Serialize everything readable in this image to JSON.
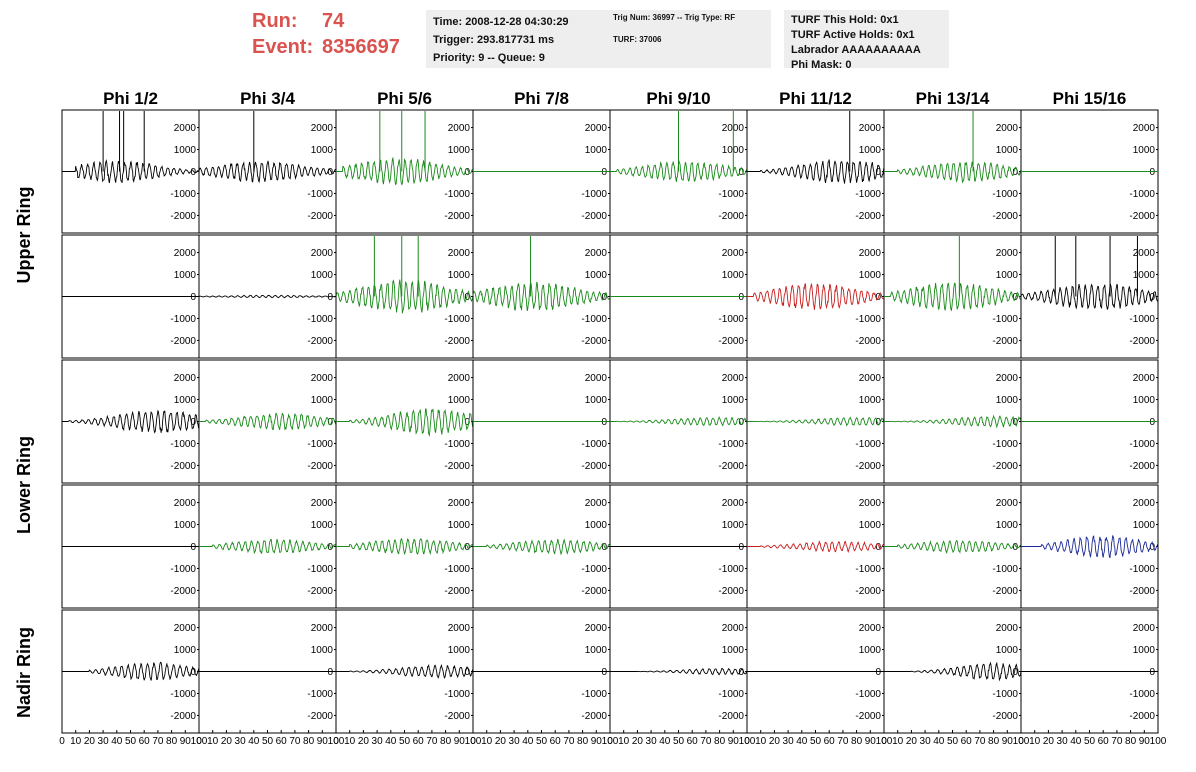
{
  "header": {
    "run_label": "Run:",
    "run_value": "74",
    "event_label": "Event:",
    "event_value": "8356697",
    "time": "Time: 2008-12-28 04:30:29",
    "trigger": "Trigger: 293.817731 ms",
    "priority": "Priority: 9 -- Queue: 9",
    "trig_num": "Trig Num: 36997 -- Trig Type: RF",
    "turf": "TURF: 37006",
    "turf_this_hold": "TURF This Hold: 0x1",
    "turf_active_holds": "TURF Active Holds: 0x1",
    "labrador": "Labrador AAAAAAAAAA",
    "phi_mask": "Phi Mask: 0",
    "accent_color": "#d9534f"
  },
  "chart_data": {
    "type": "line",
    "columns": [
      "Phi 1/2",
      "Phi 3/4",
      "Phi 5/6",
      "Phi 7/8",
      "Phi 9/10",
      "Phi 11/12",
      "Phi 13/14",
      "Phi 15/16"
    ],
    "rows": [
      "Upper Ring",
      "Upper Ring",
      "Lower Ring",
      "Lower Ring",
      "Nadir Ring"
    ],
    "row_groups": [
      {
        "label": "Upper Ring",
        "rows": [
          0,
          1
        ]
      },
      {
        "label": "Lower Ring",
        "rows": [
          2,
          3
        ]
      },
      {
        "label": "Nadir Ring",
        "rows": [
          4
        ]
      }
    ],
    "xlim": [
      0,
      100
    ],
    "ylim": [
      -2800,
      2800
    ],
    "x_ticks": [
      0,
      10,
      20,
      30,
      40,
      50,
      60,
      70,
      80,
      90,
      100
    ],
    "y_ticks": [
      -2000,
      -1000,
      0,
      1000,
      2000
    ],
    "colors": {
      "black": "#000000",
      "green": "#1a8a1a",
      "red": "#c81e1e",
      "blue": "#1c2a96"
    },
    "cells": [
      [
        {
          "color": "black",
          "start": 10,
          "end": 100,
          "peak": 40,
          "amp": 550,
          "spikes": [
            30,
            42,
            45,
            60
          ]
        },
        {
          "color": "black",
          "start": 0,
          "end": 100,
          "peak": 45,
          "amp": 500,
          "spikes": [
            40
          ]
        },
        {
          "color": "green",
          "start": 5,
          "end": 100,
          "peak": 45,
          "amp": 650,
          "spikes": [
            32,
            48,
            65
          ]
        },
        {
          "color": "green",
          "start": 0,
          "end": 0,
          "peak": 50,
          "amp": 0,
          "spikes": []
        },
        {
          "color": "green",
          "start": 5,
          "end": 100,
          "peak": 55,
          "amp": 500,
          "spikes": [
            50,
            90
          ]
        },
        {
          "color": "black",
          "start": 10,
          "end": 100,
          "peak": 70,
          "amp": 600,
          "spikes": [
            75
          ]
        },
        {
          "color": "green",
          "start": 10,
          "end": 100,
          "peak": 60,
          "amp": 500,
          "spikes": [
            65
          ]
        },
        {
          "color": "green",
          "start": 0,
          "end": 0,
          "peak": 50,
          "amp": 0,
          "spikes": []
        }
      ],
      [
        {
          "color": "black",
          "start": 0,
          "end": 0,
          "peak": 50,
          "amp": 0,
          "spikes": []
        },
        {
          "color": "black",
          "start": 0,
          "end": 100,
          "peak": 50,
          "amp": 60,
          "spikes": []
        },
        {
          "color": "green",
          "start": 0,
          "end": 100,
          "peak": 50,
          "amp": 800,
          "spikes": [
            28,
            48,
            60
          ]
        },
        {
          "color": "green",
          "start": 0,
          "end": 100,
          "peak": 45,
          "amp": 700,
          "spikes": [
            42
          ]
        },
        {
          "color": "green",
          "start": 0,
          "end": 0,
          "peak": 50,
          "amp": 0,
          "spikes": []
        },
        {
          "color": "red",
          "start": 5,
          "end": 100,
          "peak": 50,
          "amp": 650,
          "spikes": []
        },
        {
          "color": "green",
          "start": 5,
          "end": 100,
          "peak": 50,
          "amp": 700,
          "spikes": [
            55
          ]
        },
        {
          "color": "black",
          "start": 0,
          "end": 100,
          "peak": 55,
          "amp": 650,
          "spikes": [
            25,
            40,
            65,
            85
          ]
        }
      ],
      [
        {
          "color": "black",
          "start": 5,
          "end": 100,
          "peak": 70,
          "amp": 550,
          "spikes": []
        },
        {
          "color": "green",
          "start": 5,
          "end": 100,
          "peak": 60,
          "amp": 400,
          "spikes": []
        },
        {
          "color": "green",
          "start": 10,
          "end": 100,
          "peak": 70,
          "amp": 650,
          "spikes": []
        },
        {
          "color": "green",
          "start": 0,
          "end": 0,
          "peak": 50,
          "amp": 0,
          "spikes": []
        },
        {
          "color": "green",
          "start": 5,
          "end": 100,
          "peak": 75,
          "amp": 200,
          "spikes": []
        },
        {
          "color": "green",
          "start": 5,
          "end": 100,
          "peak": 80,
          "amp": 200,
          "spikes": []
        },
        {
          "color": "green",
          "start": 5,
          "end": 100,
          "peak": 80,
          "amp": 250,
          "spikes": []
        },
        {
          "color": "green",
          "start": 0,
          "end": 0,
          "peak": 50,
          "amp": 0,
          "spikes": []
        }
      ],
      [
        {
          "color": "black",
          "start": 0,
          "end": 0,
          "peak": 50,
          "amp": 0,
          "spikes": []
        },
        {
          "color": "green",
          "start": 10,
          "end": 100,
          "peak": 55,
          "amp": 350,
          "spikes": []
        },
        {
          "color": "green",
          "start": 10,
          "end": 100,
          "peak": 55,
          "amp": 400,
          "spikes": []
        },
        {
          "color": "green",
          "start": 10,
          "end": 100,
          "peak": 60,
          "amp": 350,
          "spikes": []
        },
        {
          "color": "black",
          "start": 0,
          "end": 0,
          "peak": 50,
          "amp": 0,
          "spikes": []
        },
        {
          "color": "red",
          "start": 10,
          "end": 100,
          "peak": 65,
          "amp": 250,
          "spikes": []
        },
        {
          "color": "green",
          "start": 10,
          "end": 100,
          "peak": 55,
          "amp": 300,
          "spikes": []
        },
        {
          "color": "blue",
          "start": 15,
          "end": 100,
          "peak": 60,
          "amp": 550,
          "spikes": []
        }
      ],
      [
        {
          "color": "black",
          "start": 20,
          "end": 100,
          "peak": 65,
          "amp": 450,
          "spikes": []
        },
        {
          "color": "black",
          "start": 0,
          "end": 0,
          "peak": 50,
          "amp": 0,
          "spikes": []
        },
        {
          "color": "black",
          "start": 10,
          "end": 100,
          "peak": 75,
          "amp": 300,
          "spikes": []
        },
        {
          "color": "black",
          "start": 0,
          "end": 0,
          "peak": 50,
          "amp": 0,
          "spikes": []
        },
        {
          "color": "black",
          "start": 20,
          "end": 100,
          "peak": 80,
          "amp": 150,
          "spikes": []
        },
        {
          "color": "black",
          "start": 0,
          "end": 0,
          "peak": 50,
          "amp": 0,
          "spikes": []
        },
        {
          "color": "black",
          "start": 20,
          "end": 100,
          "peak": 80,
          "amp": 400,
          "spikes": []
        },
        {
          "color": "black",
          "start": 0,
          "end": 0,
          "peak": 50,
          "amp": 0,
          "spikes": []
        }
      ]
    ]
  }
}
